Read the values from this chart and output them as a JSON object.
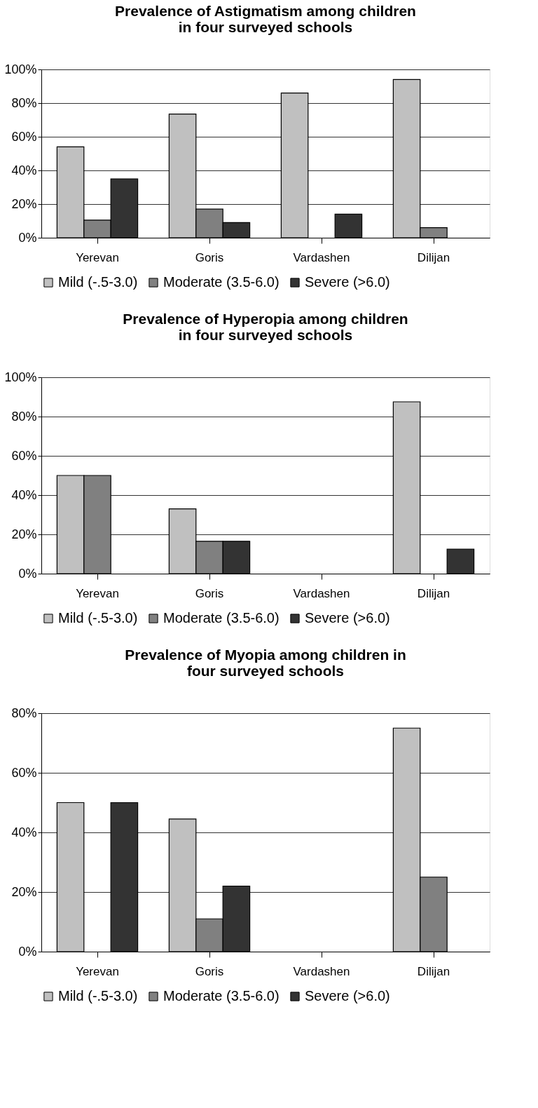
{
  "chart_data": [
    {
      "type": "bar",
      "title": "Prevalence of Astigmatism among children\nin four surveyed schools",
      "categories": [
        "Yerevan",
        "Goris",
        "Vardashen",
        "Dilijan"
      ],
      "series": [
        {
          "name": "Mild (-.5-3.0)",
          "color": "#c0c0c0",
          "values": [
            54,
            73.5,
            86,
            94
          ]
        },
        {
          "name": "Moderate (3.5-6.0)",
          "color": "#808080",
          "values": [
            10.5,
            17,
            null,
            6
          ]
        },
        {
          "name": "Severe (>6.0)",
          "color": "#333333",
          "values": [
            35,
            9,
            14,
            null
          ]
        }
      ],
      "ylim": [
        0,
        100
      ],
      "yticks": [
        {
          "value": 0,
          "label": "0%"
        },
        {
          "value": 20,
          "label": "20%"
        },
        {
          "value": 40,
          "label": "40%"
        },
        {
          "value": 60,
          "label": "60%"
        },
        {
          "value": 80,
          "label": "80%"
        },
        {
          "value": 100,
          "label": "100%"
        }
      ],
      "grid": "y",
      "legend": "bottom"
    },
    {
      "type": "bar",
      "title": "Prevalence of Hyperopia among children\nin four surveyed schools",
      "categories": [
        "Yerevan",
        "Goris",
        "Vardashen",
        "Dilijan"
      ],
      "series": [
        {
          "name": "Mild (-.5-3.0)",
          "color": "#c0c0c0",
          "values": [
            50,
            33,
            null,
            87.5
          ]
        },
        {
          "name": "Moderate (3.5-6.0)",
          "color": "#808080",
          "values": [
            50,
            16.5,
            null,
            null
          ]
        },
        {
          "name": "Severe (>6.0)",
          "color": "#333333",
          "values": [
            null,
            16.5,
            null,
            12.5
          ]
        }
      ],
      "ylim": [
        0,
        100
      ],
      "yticks": [
        {
          "value": 0,
          "label": "0%"
        },
        {
          "value": 20,
          "label": "20%"
        },
        {
          "value": 40,
          "label": "40%"
        },
        {
          "value": 60,
          "label": "60%"
        },
        {
          "value": 80,
          "label": "80%"
        },
        {
          "value": 100,
          "label": "100%"
        }
      ],
      "grid": "y",
      "legend": "bottom"
    },
    {
      "type": "bar",
      "title": "Prevalence of Myopia among children in\nfour surveyed schools",
      "categories": [
        "Yerevan",
        "Goris",
        "Vardashen",
        "Dilijan"
      ],
      "series": [
        {
          "name": "Mild (-.5-3.0)",
          "color": "#c0c0c0",
          "values": [
            50,
            44.5,
            null,
            75
          ]
        },
        {
          "name": "Moderate (3.5-6.0)",
          "color": "#808080",
          "values": [
            null,
            11,
            null,
            25
          ]
        },
        {
          "name": "Severe (>6.0)",
          "color": "#333333",
          "values": [
            50,
            22,
            null,
            null
          ]
        }
      ],
      "ylim": [
        0,
        80
      ],
      "yticks": [
        {
          "value": 0,
          "label": "0%"
        },
        {
          "value": 20,
          "label": "20%"
        },
        {
          "value": 40,
          "label": "40%"
        },
        {
          "value": 60,
          "label": "60%"
        },
        {
          "value": 80,
          "label": "80%"
        }
      ],
      "grid": "y",
      "legend": "bottom"
    }
  ]
}
